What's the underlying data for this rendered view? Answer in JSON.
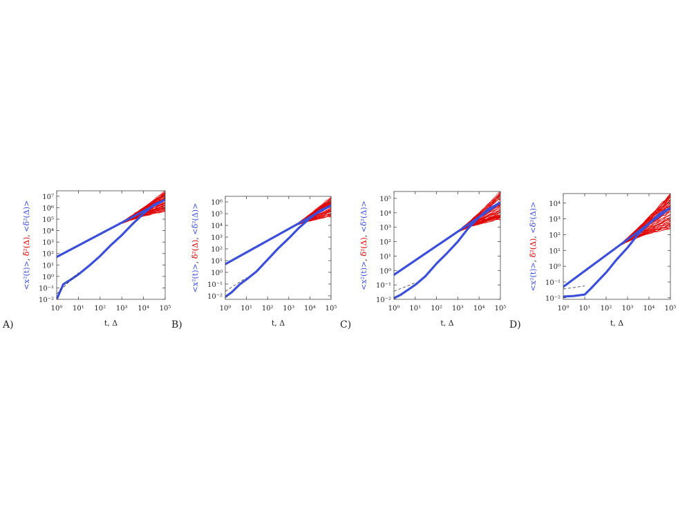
{
  "colors": {
    "msd": "#3b4fd8",
    "tamsd": "#e00000",
    "mean_tamsd": "#3b4fd8",
    "text": "#222222"
  },
  "ylabel_parts": [
    {
      "text": "<x²(t)>",
      "color": "#3b4fd8"
    },
    {
      "text": ", ",
      "color": "#222222"
    },
    {
      "text": "δ̄²(Δ)",
      "color": "#e00000"
    },
    {
      "text": ", ",
      "color": "#222222"
    },
    {
      "text": "<δ̄²(Δ)>",
      "color": "#3b4fd8"
    }
  ],
  "chart_data": [
    {
      "type": "line",
      "panel_label": "A)",
      "xlabel": "t, Δ",
      "xscale": "log",
      "yscale": "log",
      "xlim": [
        1,
        100000
      ],
      "ylim": [
        0.01,
        30000000
      ],
      "xtick_exponents": [
        0,
        1,
        2,
        3,
        4,
        5
      ],
      "ytick_exponents": [
        -2,
        -1,
        0,
        1,
        2,
        3,
        4,
        5,
        6,
        7
      ],
      "series": [
        {
          "role": "msd",
          "x": [
            1,
            2,
            5,
            10,
            30,
            100,
            300,
            1000,
            3000,
            10000,
            30000,
            100000
          ],
          "y": [
            0.01,
            0.2,
            0.6,
            1.5,
            8,
            60,
            500,
            4000,
            35000,
            300000,
            1800000,
            5000000
          ]
        },
        {
          "role": "mean_tamsd",
          "x": [
            1,
            100000
          ],
          "y": [
            50,
            5000000
          ]
        },
        {
          "role": "tamsd_ensemble",
          "x0": 300,
          "x1": 100000,
          "y0": 15000,
          "ymin_end": 500000,
          "ymax_end": 30000000,
          "dip_end": 200
        }
      ]
    },
    {
      "type": "line",
      "panel_label": "B)",
      "xlabel": "t, Δ",
      "xscale": "log",
      "yscale": "log",
      "xlim": [
        1,
        100000
      ],
      "ylim": [
        0.005,
        3000000
      ],
      "xtick_exponents": [
        0,
        1,
        2,
        3,
        4,
        5
      ],
      "ytick_exponents": [
        -2,
        -1,
        0,
        1,
        2,
        3,
        4,
        5,
        6
      ],
      "series": [
        {
          "role": "msd",
          "x": [
            1,
            2,
            5,
            10,
            30,
            100,
            300,
            1000,
            3000,
            10000,
            30000,
            100000
          ],
          "y": [
            0.008,
            0.02,
            0.1,
            0.25,
            1.2,
            12,
            100,
            800,
            6000,
            40000,
            180000,
            500000
          ]
        },
        {
          "role": "mean_tamsd",
          "x": [
            1,
            100000
          ],
          "y": [
            5,
            500000
          ]
        },
        {
          "role": "tamsd_ensemble",
          "x0": 1000,
          "x1": 100000,
          "y0": 3000,
          "ymin_end": 50000,
          "ymax_end": 3000000,
          "dip_end": 500
        }
      ]
    },
    {
      "type": "line",
      "panel_label": "C)",
      "xlabel": "t, Δ",
      "xscale": "log",
      "yscale": "log",
      "xlim": [
        1,
        100000
      ],
      "ylim": [
        0.01,
        300000
      ],
      "xtick_exponents": [
        0,
        1,
        2,
        3,
        4,
        5
      ],
      "ytick_exponents": [
        -2,
        -1,
        0,
        1,
        2,
        3,
        4,
        5
      ],
      "series": [
        {
          "role": "msd",
          "x": [
            1,
            2,
            5,
            10,
            30,
            100,
            300,
            1000,
            3000,
            10000,
            30000,
            100000
          ],
          "y": [
            0.012,
            0.02,
            0.05,
            0.1,
            0.4,
            3,
            15,
            100,
            800,
            5000,
            20000,
            50000
          ]
        },
        {
          "role": "mean_tamsd",
          "x": [
            1,
            100000
          ],
          "y": [
            0.5,
            50000
          ]
        },
        {
          "role": "tamsd_ensemble",
          "x0": 500,
          "x1": 100000,
          "y0": 300,
          "ymin_end": 3000,
          "ymax_end": 300000,
          "dip_end": 10
        }
      ]
    },
    {
      "type": "line",
      "panel_label": "D)",
      "xlabel": "t, Δ",
      "xscale": "log",
      "yscale": "log",
      "xlim": [
        1,
        100000
      ],
      "ylim": [
        0.008,
        40000
      ],
      "xtick_exponents": [
        0,
        1,
        2,
        3,
        4,
        5
      ],
      "ytick_exponents": [
        -2,
        -1,
        0,
        1,
        2,
        3,
        4
      ],
      "series": [
        {
          "role": "msd",
          "x": [
            1,
            3,
            10,
            20,
            50,
            100,
            300,
            1000,
            3000,
            10000,
            30000,
            100000
          ],
          "y": [
            0.012,
            0.013,
            0.016,
            0.04,
            0.15,
            0.4,
            2.5,
            15,
            100,
            500,
            2000,
            5000
          ]
        },
        {
          "role": "mean_tamsd",
          "x": [
            1,
            100000
          ],
          "y": [
            0.05,
            5000
          ]
        },
        {
          "role": "tamsd_ensemble",
          "x0": 200,
          "x1": 100000,
          "y0": 10,
          "ymin_end": 200,
          "ymax_end": 40000,
          "dip_end": 0.5
        }
      ]
    }
  ]
}
